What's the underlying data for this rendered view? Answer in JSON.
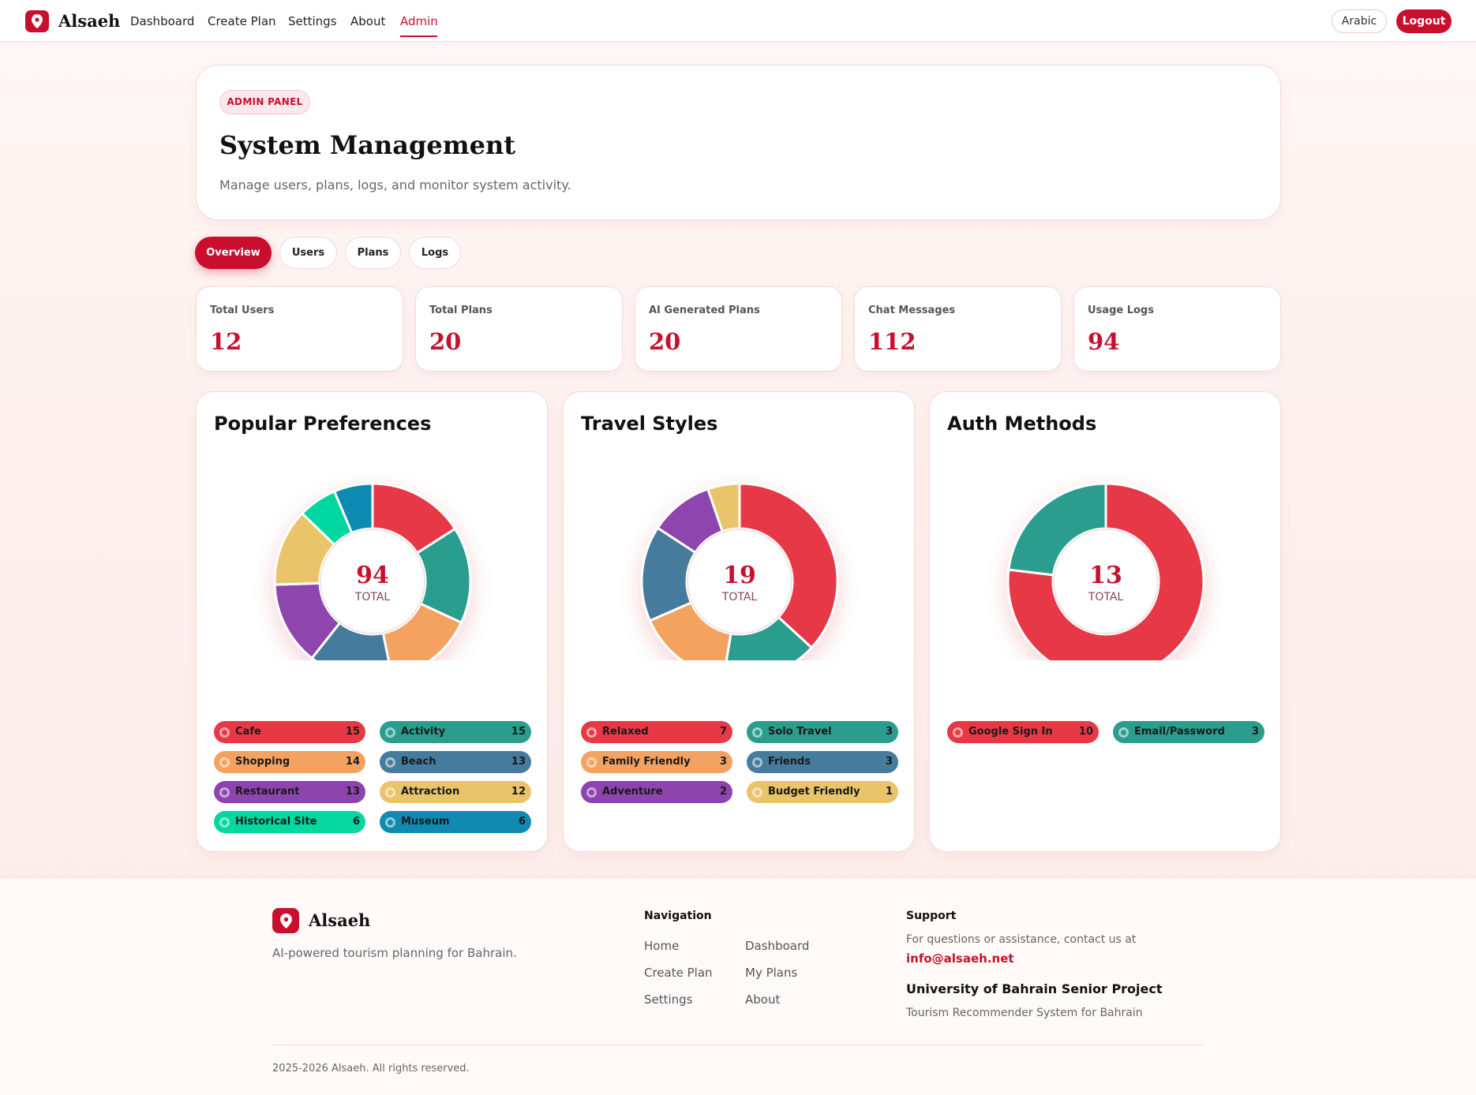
{
  "app": {
    "brand": "Alsaeh"
  },
  "nav": {
    "links": [
      "Dashboard",
      "Create Plan",
      "Settings",
      "About",
      "Admin"
    ],
    "active": "Admin",
    "arabic_label": "Arabic",
    "logout_label": "Logout"
  },
  "header": {
    "badge": "ADMIN PANEL",
    "title": "System Management",
    "subtitle": "Manage users, plans, logs, and monitor system activity."
  },
  "tabs": [
    "Overview",
    "Users",
    "Plans",
    "Logs"
  ],
  "active_tab": "Overview",
  "stats": [
    {
      "label": "Total Users",
      "value": "12"
    },
    {
      "label": "Total Plans",
      "value": "20"
    },
    {
      "label": "AI Generated Plans",
      "value": "20"
    },
    {
      "label": "Chat Messages",
      "value": "112"
    },
    {
      "label": "Usage Logs",
      "value": "94"
    }
  ],
  "chart_data": [
    {
      "type": "pie",
      "title": "Popular Preferences",
      "center_value": "94",
      "center_label": "TOTAL",
      "categories": [
        "Cafe",
        "Activity",
        "Shopping",
        "Beach",
        "Restaurant",
        "Attraction",
        "Historical Site",
        "Museum"
      ],
      "values": [
        15,
        15,
        14,
        13,
        13,
        12,
        6,
        6
      ],
      "colors": [
        "#e63946",
        "#2a9d8f",
        "#f4a261",
        "#457b9d",
        "#8e44ad",
        "#e9c46a",
        "#06d6a0",
        "#118ab2"
      ]
    },
    {
      "type": "pie",
      "title": "Travel Styles",
      "center_value": "19",
      "center_label": "TOTAL",
      "categories": [
        "Relaxed",
        "Solo Travel",
        "Family Friendly",
        "Friends",
        "Adventure",
        "Budget Friendly"
      ],
      "values": [
        7,
        3,
        3,
        3,
        2,
        1
      ],
      "colors": [
        "#e63946",
        "#2a9d8f",
        "#f4a261",
        "#457b9d",
        "#8e44ad",
        "#e9c46a"
      ]
    },
    {
      "type": "pie",
      "title": "Auth Methods",
      "center_value": "13",
      "center_label": "TOTAL",
      "categories": [
        "Google Sign In",
        "Email/Password"
      ],
      "values": [
        10,
        3
      ],
      "colors": [
        "#e63946",
        "#2a9d8f"
      ]
    }
  ],
  "footer": {
    "brand": "Alsaeh",
    "tagline": "AI-powered tourism planning for Bahrain.",
    "nav_heading": "Navigation",
    "nav_links": [
      "Home",
      "Dashboard",
      "Create Plan",
      "My Plans",
      "Settings",
      "About"
    ],
    "support_heading": "Support",
    "support_text": "For questions or assistance, contact us at",
    "support_email": "info@alsaeh.net",
    "project_title": "University of Bahrain Senior Project",
    "project_sub": "Tourism Recommender System for Bahrain",
    "copyright": "2025-2026 Alsaeh. All rights reserved."
  },
  "icons": {
    "logo": "map-pin-icon"
  },
  "colors": {
    "accent": "#c8102e"
  }
}
